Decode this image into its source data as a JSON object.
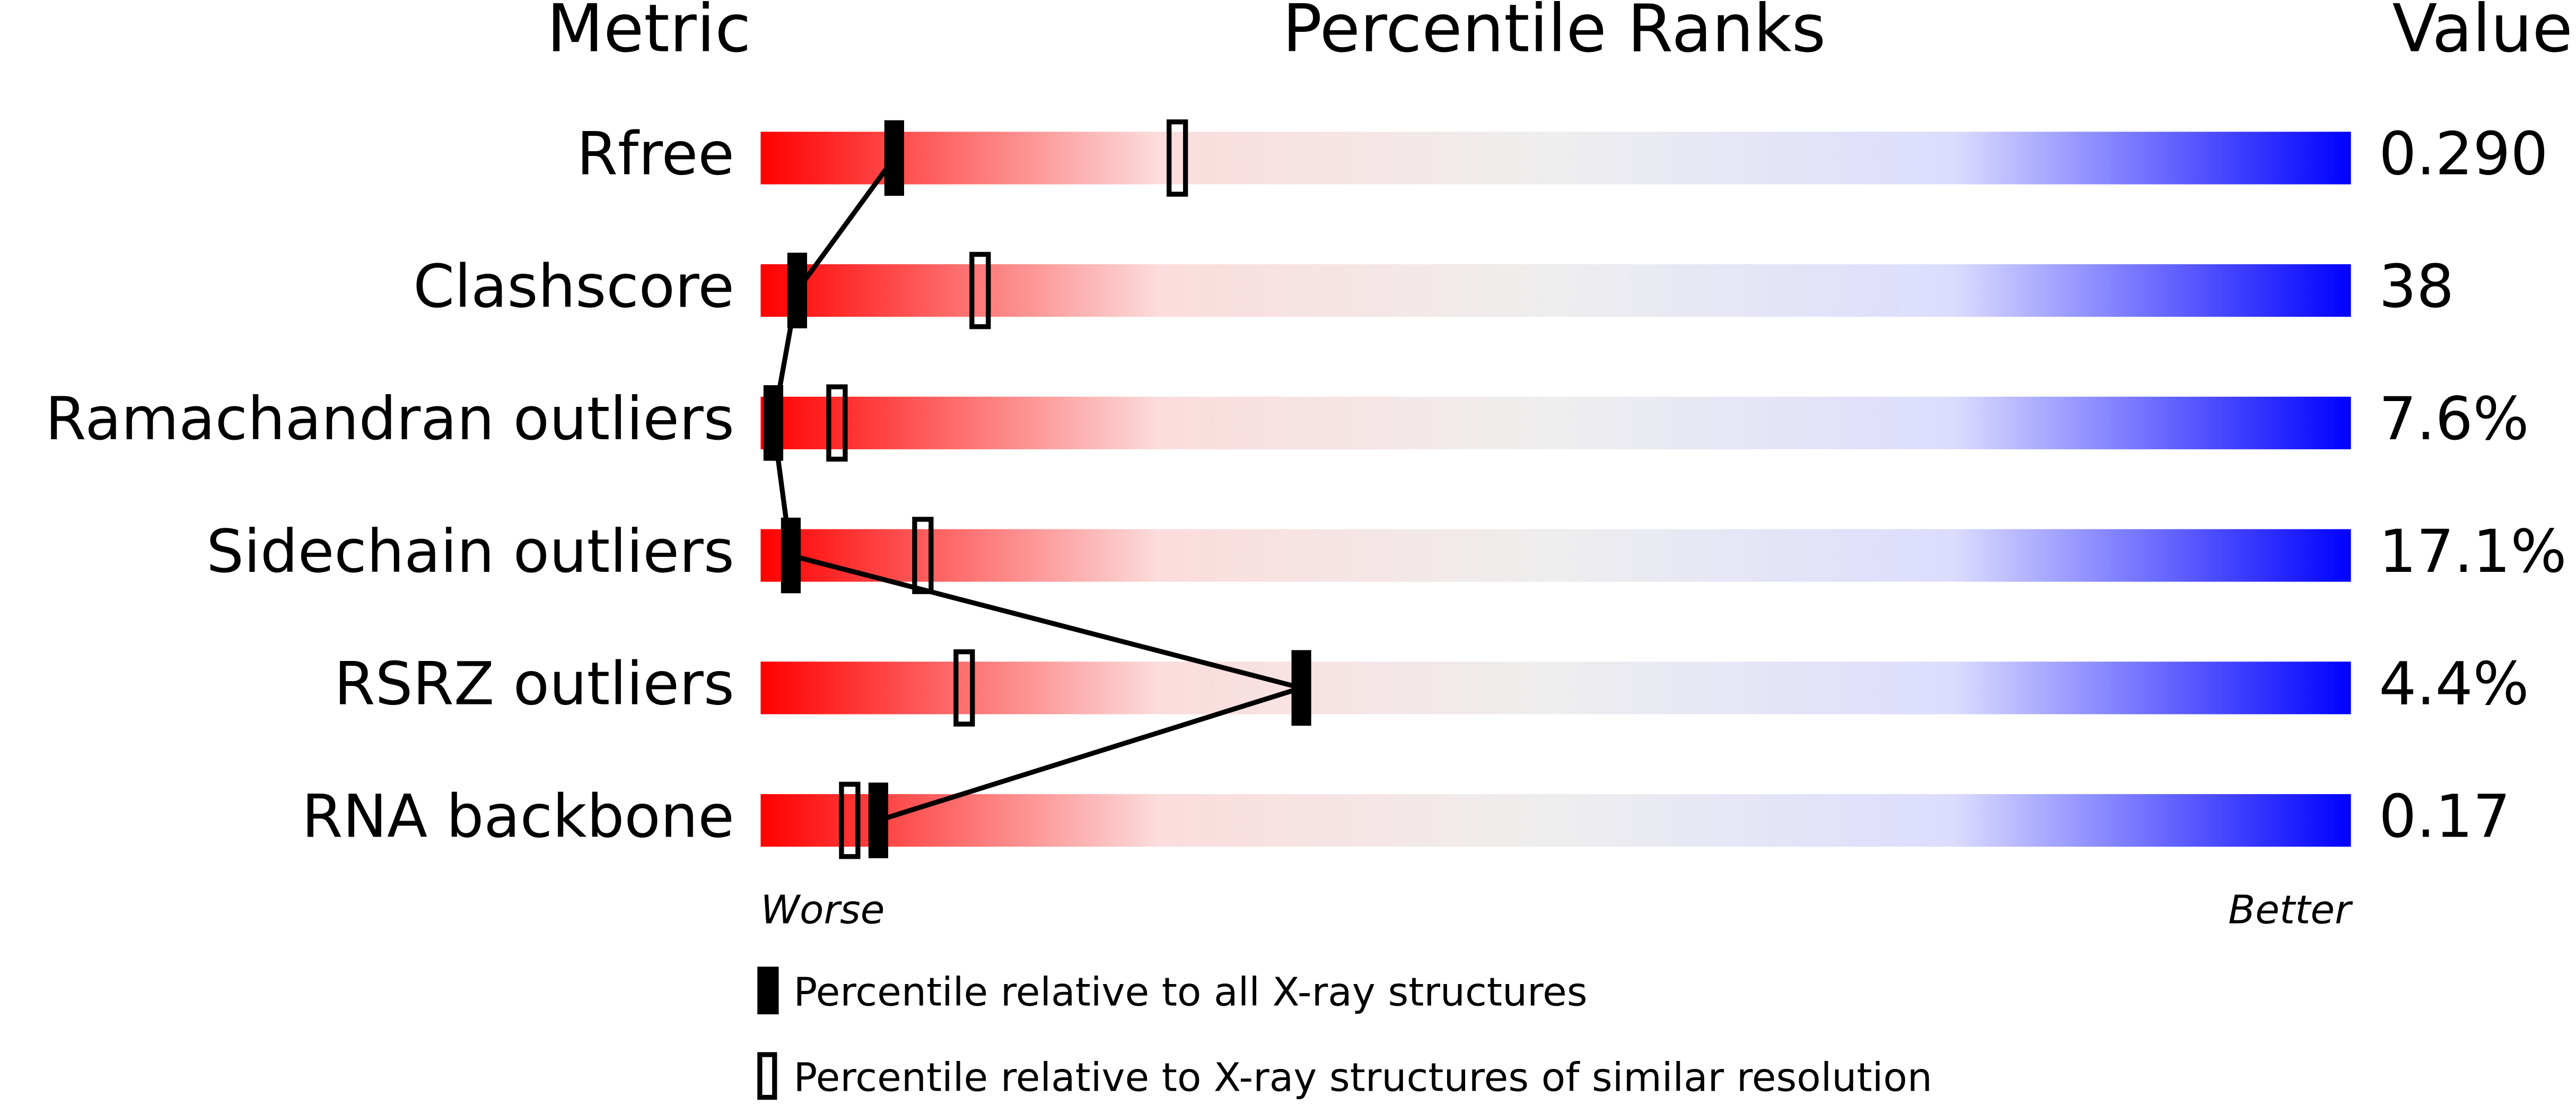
{
  "chart_data": {
    "type": "percentile",
    "headers": {
      "metric": "Metric",
      "ranks": "Percentile Ranks",
      "value": "Value"
    },
    "categories": [
      "Rfree",
      "Clashscore",
      "Ramachandran outliers",
      "Sidechain outliers",
      "RSRZ outliers",
      "RNA backbone"
    ],
    "metric_values": [
      "0.290",
      "38",
      "7.6%",
      "17.1%",
      "4.4%",
      "0.17"
    ],
    "xlim": [
      0,
      100
    ],
    "axis_ends": {
      "low": "Worse",
      "high": "Better"
    },
    "gradient": [
      "#ff0000",
      "#fcdcdc",
      "#eeeeee",
      "#dcdcff",
      "#0000ff"
    ],
    "series": [
      {
        "name": "Percentile relative to all X-ray structures",
        "color": "#000000",
        "style": "filled",
        "values": [
          8.4,
          2.3,
          0.8,
          1.9,
          34,
          7.4
        ]
      },
      {
        "name": "Percentile relative to X-ray structures of similar resolution",
        "color": "#000000",
        "style": "open",
        "values": [
          26.2,
          13.8,
          4.8,
          10.2,
          12.8,
          5.6
        ]
      }
    ]
  }
}
